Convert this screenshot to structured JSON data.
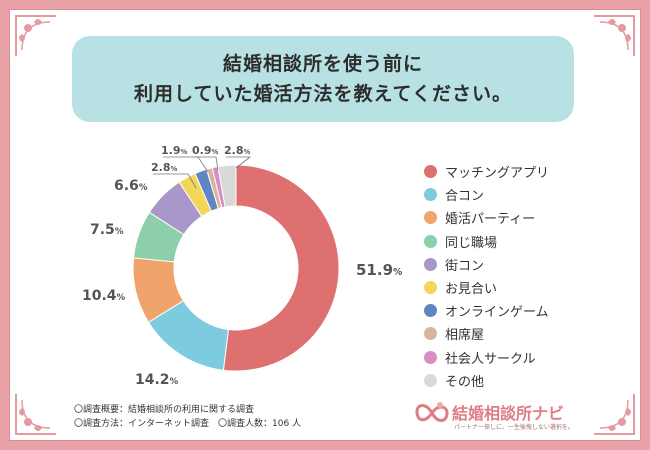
{
  "title": {
    "line1": "結婚相談所を使う前に",
    "line2": "利用していた婚活方法を教えてください。"
  },
  "chart_data": {
    "type": "pie",
    "donut": true,
    "unit": "%",
    "categories": [
      "マッチングアプリ",
      "合コン",
      "婚活パーティー",
      "同じ職場",
      "街コン",
      "お見合い",
      "オンラインゲーム",
      "相席屋",
      "社会人サークル",
      "その他"
    ],
    "values": [
      51.9,
      14.2,
      10.4,
      7.5,
      6.6,
      2.8,
      1.9,
      0.9,
      0.9,
      2.8
    ],
    "colors": [
      "#de7070",
      "#7ccbde",
      "#f0a36a",
      "#8ccfaa",
      "#a996ca",
      "#f2d659",
      "#5f86c2",
      "#d6b59b",
      "#d98ec0",
      "#d9d9d9"
    ],
    "labels": [
      {
        "value": "51.9",
        "suffix": "%"
      },
      {
        "value": "14.2",
        "suffix": "%"
      },
      {
        "value": "10.4",
        "suffix": "%"
      },
      {
        "value": "7.5",
        "suffix": "%"
      },
      {
        "value": "6.6",
        "suffix": "%"
      },
      {
        "value": "2.8",
        "suffix": "%"
      },
      {
        "value": "1.9",
        "suffix": "%"
      },
      {
        "value": "0.9",
        "suffix": "%"
      },
      {
        "value": "2.8",
        "suffix": "%"
      }
    ],
    "legend_position": "right"
  },
  "notes": {
    "line1": "〇調査概要：結婚相談所の利用に関する調査",
    "line2": "〇調査方法：インターネット調査　〇調査人数：106 人"
  },
  "brand": {
    "name": "結婚相談所ナビ",
    "tagline": "パートナー探しに、一生後悔しない選択を。"
  }
}
